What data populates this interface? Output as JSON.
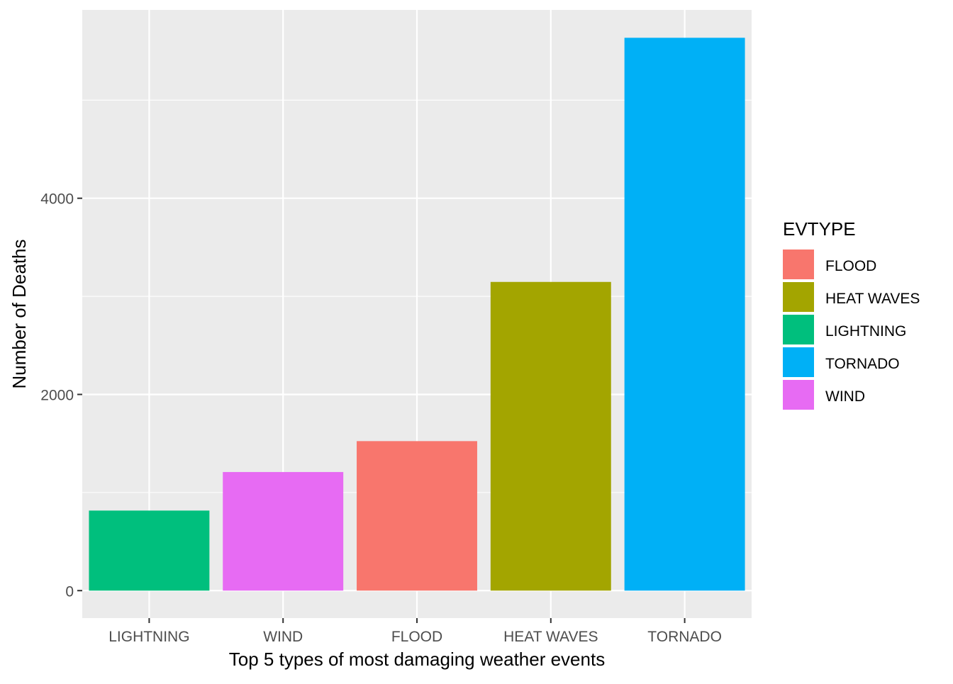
{
  "chart_data": {
    "type": "bar",
    "title": "",
    "xlabel": "Top 5 types of most damaging weather events",
    "ylabel": "Number of Deaths",
    "categories": [
      "LIGHTNING",
      "WIND",
      "FLOOD",
      "HEAT WAVES",
      "TORNADO"
    ],
    "values": [
      816,
      1209,
      1524,
      3147,
      5636
    ],
    "bar_colors": [
      "#00BF7D",
      "#E76BF3",
      "#F8766D",
      "#A3A500",
      "#00B0F6"
    ],
    "ylim": [
      -280,
      5920
    ],
    "yticks": [
      0,
      2000,
      4000
    ],
    "ytick_labels": [
      "0",
      "2000",
      "4000"
    ],
    "y_minor_ticks": [
      1000,
      3000,
      5000
    ],
    "grid": true,
    "panel_background": "#EBEBEB",
    "legend": {
      "title": "EVTYPE",
      "placement": "right",
      "items": [
        {
          "label": "FLOOD",
          "color": "#F8766D"
        },
        {
          "label": "HEAT WAVES",
          "color": "#A3A500"
        },
        {
          "label": "LIGHTNING",
          "color": "#00BF7D"
        },
        {
          "label": "TORNADO",
          "color": "#00B0F6"
        },
        {
          "label": "WIND",
          "color": "#E76BF3"
        }
      ]
    }
  }
}
